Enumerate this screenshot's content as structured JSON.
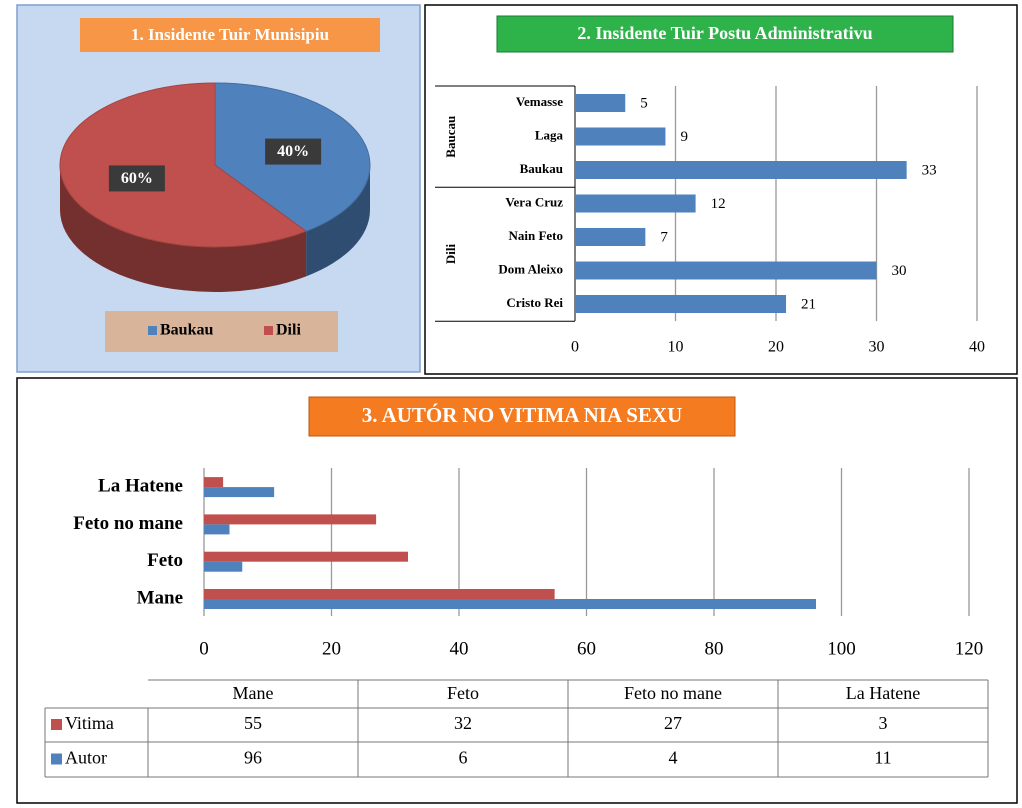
{
  "chart_data": [
    {
      "type": "pie",
      "title": "1. Insidente Tuir Munisipiu",
      "categories": [
        "Baukau",
        "Dili"
      ],
      "values": [
        40,
        60
      ],
      "value_labels": [
        "40%",
        "60%"
      ],
      "colors": [
        "#4f81bd",
        "#c0504d"
      ],
      "legend": "bottom"
    },
    {
      "type": "bar",
      "title": "2. Insidente Tuir Postu Administrativu",
      "orientation": "horizontal",
      "groups": [
        {
          "name": "Baucau",
          "categories": [
            "Vemasse",
            "Laga",
            "Baukau"
          ],
          "values": [
            5,
            9,
            33
          ]
        },
        {
          "name": "Dili",
          "categories": [
            "Vera Cruz",
            "Nain Feto",
            "Dom Aleixo",
            "Cristo Rei"
          ],
          "values": [
            12,
            7,
            30,
            21
          ]
        }
      ],
      "color": "#4f81bd",
      "xlim": [
        0,
        40
      ],
      "xticks": [
        0,
        10,
        20,
        30,
        40
      ],
      "grid": true
    },
    {
      "type": "bar",
      "title": "3. AUTÓR NO VITIMA NIA SEXU",
      "orientation": "horizontal",
      "categories": [
        "Mane",
        "Feto",
        "Feto no mane",
        "La Hatene"
      ],
      "series": [
        {
          "name": "Vitima",
          "color": "#c0504d",
          "values": [
            55,
            32,
            27,
            3
          ]
        },
        {
          "name": "Autor",
          "color": "#4f81bd",
          "values": [
            96,
            6,
            4,
            11
          ]
        }
      ],
      "xlim": [
        0,
        120
      ],
      "xticks": [
        0,
        20,
        40,
        60,
        80,
        100,
        120
      ],
      "grid": true,
      "data_table": true
    }
  ]
}
